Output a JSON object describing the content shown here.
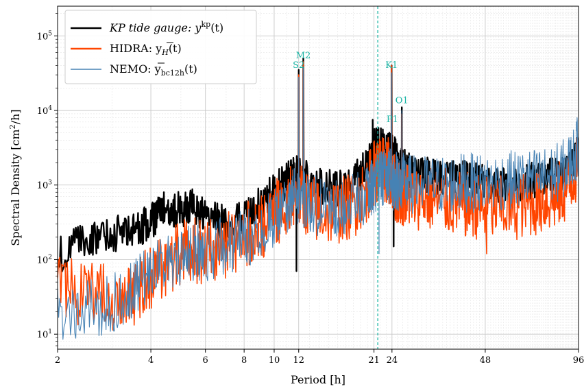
{
  "chart_data": {
    "type": "line",
    "title": "",
    "xlabel": "Period [h]",
    "ylabel_text": "Spectral Density [cm",
    "ylabel_sup": "2",
    "ylabel_tail": "/h]",
    "xscale": "log",
    "yscale": "log",
    "xlim": [
      2,
      96
    ],
    "ylim": [
      6.3,
      250000
    ],
    "x_ticks": [
      {
        "value": 2,
        "label": "2"
      },
      {
        "value": 4,
        "label": "4"
      },
      {
        "value": 6,
        "label": "6"
      },
      {
        "value": 8,
        "label": "8"
      },
      {
        "value": 10,
        "label": "10"
      },
      {
        "value": 12,
        "label": "12"
      },
      {
        "value": 21,
        "label": "21"
      },
      {
        "value": 24,
        "label": "24"
      },
      {
        "value": 48,
        "label": "48"
      },
      {
        "value": 96,
        "label": "96"
      }
    ],
    "y_ticks": [
      {
        "value": 10,
        "base": "10",
        "exp": "1"
      },
      {
        "value": 100,
        "base": "10",
        "exp": "2"
      },
      {
        "value": 1000,
        "base": "10",
        "exp": "3"
      },
      {
        "value": 10000,
        "base": "10",
        "exp": "4"
      },
      {
        "value": 100000,
        "base": "10",
        "exp": "5"
      }
    ],
    "grid": true,
    "legend_position": "top-left",
    "vertical_marker": {
      "x": 21.6,
      "color": "#17b3a3",
      "style": "dashed"
    },
    "annotations": [
      {
        "text": "M2",
        "x": 12.42,
        "y": 50000
      },
      {
        "text": "S2",
        "x": 12.0,
        "y": 37000
      },
      {
        "text": "K1",
        "x": 23.93,
        "y": 37000
      },
      {
        "text": "O1",
        "x": 25.82,
        "y": 12500
      },
      {
        "text": "P1",
        "x": 24.07,
        "y": 7000
      }
    ],
    "annotation_color": "#17b3a3",
    "series": [
      {
        "name": "KP tide gauge",
        "legend_parts": {
          "main": "KP tide gauge:  y",
          "sup": "kp",
          "tail": "(t)"
        },
        "color": "#000000",
        "width": 2.4,
        "base_x": [
          2,
          2.5,
          3,
          3.5,
          4,
          4.5,
          5,
          5.5,
          6,
          7,
          8,
          9,
          10,
          11,
          11.6,
          12.7,
          14,
          16,
          18,
          20,
          21,
          22,
          23,
          23.5,
          24.6,
          25,
          26.5,
          28,
          32,
          36,
          40,
          44,
          48,
          56,
          64,
          72,
          80,
          88,
          96
        ],
        "base_y": [
          150,
          250,
          300,
          330,
          420,
          650,
          600,
          700,
          500,
          400,
          500,
          700,
          1100,
          1500,
          1900,
          1800,
          1300,
          1200,
          1500,
          2500,
          4200,
          4800,
          3500,
          3800,
          3500,
          2500,
          2300,
          1800,
          1800,
          1600,
          1700,
          1600,
          1400,
          1300,
          1500,
          1600,
          1800,
          2000,
          3500
        ],
        "noise": 0.25,
        "points_per_segment": 28,
        "peaks": [
          {
            "x": 12.0,
            "y": 35000
          },
          {
            "x": 12.42,
            "y": 50000
          },
          {
            "x": 23.93,
            "y": 40000
          },
          {
            "x": 25.82,
            "y": 11000
          },
          {
            "x": 20.8,
            "y": 7500
          }
        ],
        "dips": [
          {
            "x": 11.8,
            "y": 70
          },
          {
            "x": 24.3,
            "y": 150
          }
        ]
      },
      {
        "name": "HIDRA",
        "legend_parts": {
          "main": "HIDRA:  y",
          "sub": "H",
          "tail": "(t)",
          "overline": true
        },
        "color": "#ff4500",
        "width": 1.6,
        "base_x": [
          2,
          2.5,
          3,
          3.5,
          4,
          4.5,
          5,
          5.5,
          6,
          7,
          8,
          9,
          10,
          11,
          11.6,
          12.7,
          14,
          16,
          18,
          20,
          21,
          22,
          23,
          23.5,
          24.6,
          25,
          26.5,
          28,
          32,
          36,
          40,
          44,
          48,
          56,
          64,
          72,
          80,
          88,
          96
        ],
        "base_y": [
          70,
          60,
          50,
          60,
          100,
          150,
          200,
          220,
          200,
          250,
          350,
          450,
          700,
          900,
          1300,
          1000,
          700,
          750,
          900,
          1500,
          2500,
          2800,
          2500,
          2600,
          1500,
          1400,
          1300,
          1200,
          1100,
          1000,
          900,
          900,
          800,
          800,
          900,
          1000,
          1100,
          1500,
          3000
        ],
        "noise": 0.45,
        "points_per_segment": 28,
        "peaks": [
          {
            "x": 12.0,
            "y": 30000
          },
          {
            "x": 12.42,
            "y": 45000
          },
          {
            "x": 23.93,
            "y": 40000
          },
          {
            "x": 25.82,
            "y": 9000
          }
        ],
        "dips": [
          {
            "x": 48.5,
            "y": 120
          }
        ]
      },
      {
        "name": "NEMO",
        "legend_parts": {
          "main": "NEMO:  y",
          "sub": "bc12h",
          "tail": "(t)",
          "overline": true
        },
        "color": "#4682b4",
        "width": 1.1,
        "base_x": [
          2,
          2.5,
          3,
          3.5,
          4,
          4.5,
          5,
          5.5,
          6,
          7,
          8,
          9,
          10,
          11,
          11.6,
          12.7,
          14,
          16,
          18,
          20,
          21,
          22,
          23,
          23.5,
          24.6,
          25,
          26.5,
          28,
          32,
          36,
          40,
          44,
          48,
          56,
          64,
          72,
          80,
          88,
          96
        ],
        "base_y": [
          30,
          35,
          40,
          60,
          120,
          150,
          180,
          200,
          200,
          250,
          300,
          400,
          600,
          800,
          1100,
          1000,
          800,
          800,
          900,
          1200,
          1600,
          2000,
          2000,
          2100,
          1700,
          1800,
          1700,
          1600,
          1600,
          1600,
          1700,
          1700,
          1700,
          1800,
          1900,
          2000,
          2200,
          2800,
          5000
        ],
        "noise": 0.4,
        "points_per_segment": 28,
        "peaks": [
          {
            "x": 12.0,
            "y": 28000
          },
          {
            "x": 12.42,
            "y": 38000
          },
          {
            "x": 23.93,
            "y": 32000
          },
          {
            "x": 25.82,
            "y": 10000
          },
          {
            "x": 95.0,
            "y": 8000
          }
        ],
        "dips": [
          {
            "x": 21.8,
            "y": 120
          }
        ]
      }
    ]
  }
}
